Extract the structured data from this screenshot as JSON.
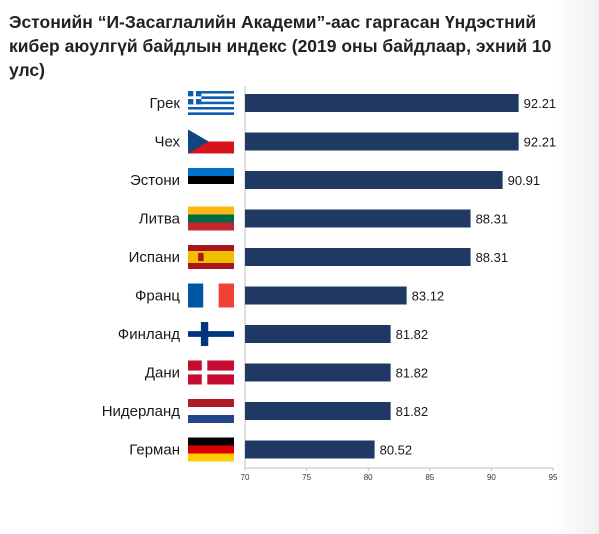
{
  "title": "Эстонийн “И-Засаглалийн Академи”-аас гаргасан Үндэстний кибер аюулгүй байдлын индекс (2019 оны байдлаар, эхний 10 улс)",
  "colors": {
    "bar": "#1f3864",
    "background": "#ffffff"
  },
  "chart_data": {
    "type": "bar",
    "orientation": "horizontal",
    "title": "Эстонийн “И-Засаглалийн Академи”-аас гаргасан Үндэстний кибер аюулгүй байдлын индекс (2019 оны байдлаар, эхний 10 улс)",
    "categories": [
      "Грек",
      "Чех",
      "Эстони",
      "Литва",
      "Испани",
      "Франц",
      "Финланд",
      "Дани",
      "Нидерланд",
      "Герман"
    ],
    "values": [
      92.21,
      92.21,
      90.91,
      88.31,
      88.31,
      83.12,
      81.82,
      81.82,
      81.82,
      80.52
    ],
    "value_labels": [
      "92.21",
      "92.21",
      "90.91",
      "88.31",
      "88.31",
      "83.12",
      "81.82",
      "81.82",
      "81.82",
      "80.52"
    ],
    "flags": [
      "greece-flag-icon",
      "czech-flag-icon",
      "estonia-flag-icon",
      "lithuania-flag-icon",
      "spain-flag-icon",
      "france-flag-icon",
      "finland-flag-icon",
      "denmark-flag-icon",
      "netherlands-flag-icon",
      "germany-flag-icon"
    ],
    "xlim": [
      70,
      95
    ],
    "xticks": [
      70,
      75,
      80,
      85,
      90,
      95
    ],
    "xlabel": "",
    "ylabel": "",
    "grid": false,
    "legend": "none"
  }
}
